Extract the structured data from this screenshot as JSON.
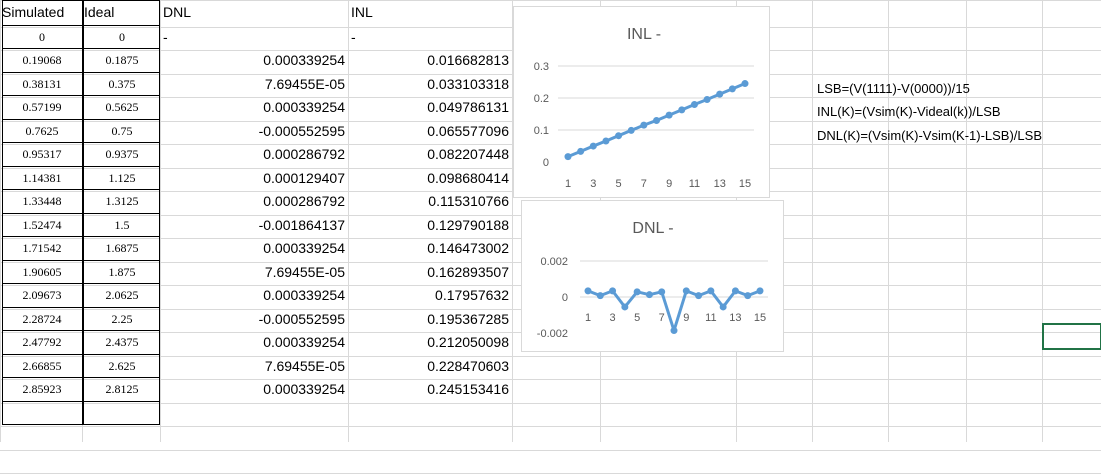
{
  "headers": {
    "simulated": "Simulated",
    "ideal": "Ideal",
    "dnl": "DNL",
    "inl": "INL"
  },
  "rows": [
    {
      "sim": "0",
      "ideal": "0",
      "dnl": "-",
      "inl": "-"
    },
    {
      "sim": "0.19068",
      "ideal": "0.1875",
      "dnl": "0.000339254",
      "inl": "0.016682813"
    },
    {
      "sim": "0.38131",
      "ideal": "0.375",
      "dnl": "7.69455E-05",
      "inl": "0.033103318"
    },
    {
      "sim": "0.57199",
      "ideal": "0.5625",
      "dnl": "0.000339254",
      "inl": "0.049786131"
    },
    {
      "sim": "0.7625",
      "ideal": "0.75",
      "dnl": "-0.000552595",
      "inl": "0.065577096"
    },
    {
      "sim": "0.95317",
      "ideal": "0.9375",
      "dnl": "0.000286792",
      "inl": "0.082207448"
    },
    {
      "sim": "1.14381",
      "ideal": "1.125",
      "dnl": "0.000129407",
      "inl": "0.098680414"
    },
    {
      "sim": "1.33448",
      "ideal": "1.3125",
      "dnl": "0.000286792",
      "inl": "0.115310766"
    },
    {
      "sim": "1.52474",
      "ideal": "1.5",
      "dnl": "-0.001864137",
      "inl": "0.129790188"
    },
    {
      "sim": "1.71542",
      "ideal": "1.6875",
      "dnl": "0.000339254",
      "inl": "0.146473002"
    },
    {
      "sim": "1.90605",
      "ideal": "1.875",
      "dnl": "7.69455E-05",
      "inl": "0.162893507"
    },
    {
      "sim": "2.09673",
      "ideal": "2.0625",
      "dnl": "0.000339254",
      "inl": "0.17957632"
    },
    {
      "sim": "2.28724",
      "ideal": "2.25",
      "dnl": "-0.000552595",
      "inl": "0.195367285"
    },
    {
      "sim": "2.47792",
      "ideal": "2.4375",
      "dnl": "0.000339254",
      "inl": "0.212050098"
    },
    {
      "sim": "2.66855",
      "ideal": "2.625",
      "dnl": "7.69455E-05",
      "inl": "0.228470603"
    },
    {
      "sim": "2.85923",
      "ideal": "2.8125",
      "dnl": "0.000339254",
      "inl": "0.245153416"
    }
  ],
  "formulas": [
    "LSB=(V(1111)-V(0000))/15",
    "INL(K)=(Vsim(K)-Videal(k))/LSB",
    "DNL(K)=(Vsim(K)-Vsim(K-1)-LSB)/LSB"
  ],
  "chart_data": [
    {
      "type": "line",
      "title": "INL -",
      "x": [
        1,
        2,
        3,
        4,
        5,
        6,
        7,
        8,
        9,
        10,
        11,
        12,
        13,
        14,
        15
      ],
      "xticks": [
        "1",
        "3",
        "5",
        "7",
        "9",
        "11",
        "13",
        "15"
      ],
      "yticks": [
        "0",
        "0.1",
        "0.2",
        "0.3"
      ],
      "ylim": [
        0,
        0.3
      ],
      "values": [
        0.016682813,
        0.033103318,
        0.049786131,
        0.065577096,
        0.082207448,
        0.098680414,
        0.115310766,
        0.129790188,
        0.146473002,
        0.162893507,
        0.17957632,
        0.195367285,
        0.212050098,
        0.228470603,
        0.245153416
      ],
      "color": "#5b9bd5",
      "grid": true
    },
    {
      "type": "line",
      "title": "DNL -",
      "x": [
        1,
        2,
        3,
        4,
        5,
        6,
        7,
        8,
        9,
        10,
        11,
        12,
        13,
        14,
        15
      ],
      "xticks": [
        "1",
        "3",
        "5",
        "7",
        "9",
        "11",
        "13",
        "15"
      ],
      "yticks": [
        "-0.002",
        "0",
        "0.002"
      ],
      "ylim": [
        -0.002,
        0.002
      ],
      "values": [
        0.000339254,
        7.69455e-05,
        0.000339254,
        -0.000552595,
        0.000286792,
        0.000129407,
        0.000286792,
        -0.001864137,
        0.000339254,
        7.69455e-05,
        0.000339254,
        -0.000552595,
        0.000339254,
        7.69455e-05,
        0.000339254
      ],
      "color": "#5b9bd5",
      "grid": true
    }
  ]
}
